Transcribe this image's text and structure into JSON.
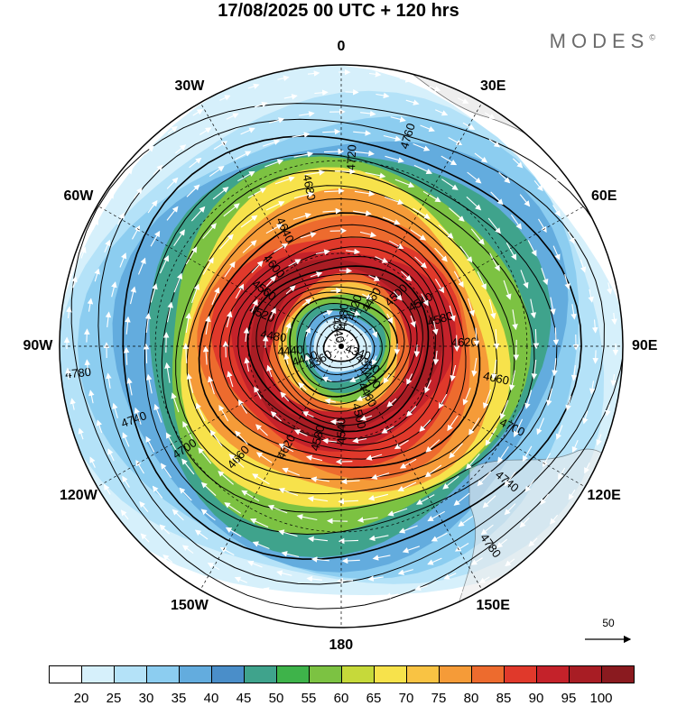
{
  "title": "17/08/2025  00 UTC  + 120 hrs",
  "brand": "MODES",
  "brand_mark": "©",
  "longitudes": [
    {
      "label": "0",
      "lon": 0
    },
    {
      "label": "30E",
      "lon": 30
    },
    {
      "label": "60E",
      "lon": 60
    },
    {
      "label": "90E",
      "lon": 90
    },
    {
      "label": "120E",
      "lon": 120
    },
    {
      "label": "150E",
      "lon": 150
    },
    {
      "label": "180",
      "lon": 180
    },
    {
      "label": "150W",
      "lon": -150
    },
    {
      "label": "120W",
      "lon": -120
    },
    {
      "label": "90W",
      "lon": -90
    },
    {
      "label": "60W",
      "lon": -60
    },
    {
      "label": "30W",
      "lon": -30
    }
  ],
  "wind_speed_fill": {
    "levels": [
      20,
      25,
      30,
      35,
      40,
      45,
      50,
      55,
      60,
      65,
      70,
      75,
      80,
      85,
      90,
      95,
      100
    ],
    "colors": [
      "#ffffff",
      "#d6f0fb",
      "#b4e2f8",
      "#8ccdf0",
      "#63acde",
      "#4a8ec9",
      "#3fa38c",
      "#3eb34a",
      "#7cc242",
      "#c6d93a",
      "#f7e24b",
      "#f9c343",
      "#f59b38",
      "#ed6b2e",
      "#e0392b",
      "#c4222a",
      "#a81d24",
      "#8a1a1f"
    ],
    "band_radius_fraction": [
      0.06,
      0.1,
      0.13,
      0.16,
      0.19,
      0.22,
      0.25,
      0.28,
      0.33,
      0.38,
      0.43,
      0.48,
      0.54,
      0.6,
      0.66,
      0.72,
      0.79,
      0.86,
      0.93,
      1.0
    ],
    "band_color_index": [
      0,
      1,
      4,
      6,
      8,
      11,
      13,
      15,
      16,
      15,
      14,
      13,
      12,
      10,
      8,
      6,
      4,
      3,
      2,
      1
    ]
  },
  "height_contours": {
    "labels": [
      "4340",
      "4360",
      "4380",
      "4400",
      "4420",
      "4440",
      "4460",
      "4480",
      "4500",
      "4520",
      "4540",
      "4560",
      "4580",
      "4600",
      "4620",
      "4640",
      "4660",
      "4680",
      "4700",
      "4720",
      "4740",
      "4760",
      "4780"
    ],
    "radius_fraction": [
      0.06,
      0.085,
      0.11,
      0.135,
      0.16,
      0.185,
      0.21,
      0.235,
      0.26,
      0.285,
      0.31,
      0.34,
      0.37,
      0.4,
      0.44,
      0.48,
      0.53,
      0.58,
      0.64,
      0.71,
      0.79,
      0.87,
      0.95
    ],
    "labeled_angles_deg": [
      20,
      140,
      260
    ]
  },
  "reference_vector": {
    "label": "50"
  },
  "colorbar": {
    "ticks": [
      "20",
      "25",
      "30",
      "35",
      "40",
      "45",
      "50",
      "55",
      "60",
      "65",
      "70",
      "75",
      "80",
      "85",
      "90",
      "95",
      "100"
    ]
  }
}
